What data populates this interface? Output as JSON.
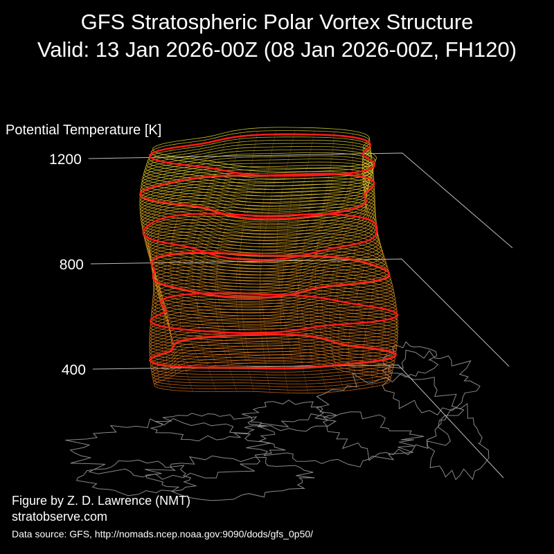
{
  "colors": {
    "background": "#000000",
    "text": "#ffffff",
    "axis_lines": "#bdbdbd",
    "coastline": "#8a8a8a",
    "highlight_contour": "#ff1a1a",
    "surface_low": "#e0701a",
    "surface_mid": "#e6a020",
    "surface_high": "#e6e030"
  },
  "chart_data": {
    "type": "3d-isosurface",
    "title_line1": "GFS Stratospheric Polar Vortex Structure",
    "title_line2": "Valid: 13 Jan 2026-00Z  (08 Jan 2026-00Z, FH120)",
    "zlabel": "Potential Temperature [K]",
    "z_ticks": [
      {
        "value": 400,
        "label": "400"
      },
      {
        "value": 800,
        "label": "800"
      },
      {
        "value": 1200,
        "label": "1200"
      }
    ],
    "zlim": [
      300,
      1250
    ],
    "highlighted_levels": [
      450,
      600,
      750,
      900,
      1050,
      1200
    ],
    "surface_bottom": 350,
    "surface_top": 1230,
    "colormap": "orange (low) to yellow (high)",
    "base_map": "Northern Hemisphere coastlines",
    "grid": false
  },
  "credits": {
    "author": "Figure by Z. D. Lawrence (NMT)",
    "website": "stratobserve.com",
    "source": "Data source: GFS, http://nomads.ncep.noaa.gov:9090/dods/gfs_0p50/"
  }
}
